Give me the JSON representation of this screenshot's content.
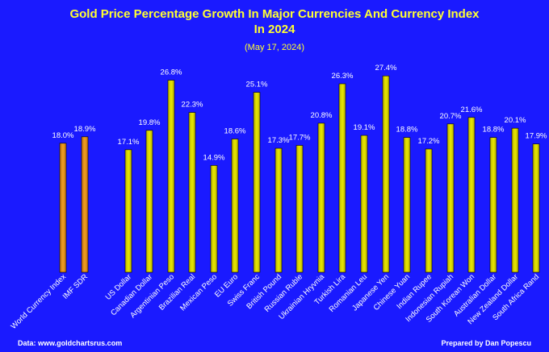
{
  "title_line1": "Gold Price Percentage Growth In Major Currencies And Currency Index",
  "title_line2": "In 2024",
  "subtitle": "(May 17, 2024)",
  "source": "Data: www.goldchartsrus.com",
  "credit": "Prepared by Dan Popescu",
  "colors": {
    "background": "#1a1aff",
    "bar_gold": "#e8e800",
    "bar_orange": "#f0a020",
    "label": "#ffffff",
    "title": "#ffff33"
  },
  "chart_data": {
    "type": "bar",
    "title": "Gold Price Percentage Growth In Major Currencies And Currency Index In 2024",
    "subtitle": "(May 17, 2024)",
    "categories": [
      "World Currency Index",
      "IMF SDR",
      "US Dollar",
      "Canadian Dollar",
      "Argentinian Peso",
      "Brazilian Real",
      "Mexican Peso",
      "EU Euro",
      "Swiss Franc",
      "British Pound",
      "Russian Ruble",
      "Ukrainian Hryvnia",
      "Turkish Lira",
      "Romanian Leu",
      "Japanese Yen",
      "Chinese Yuan",
      "Indian Rupee",
      "Indonesian Rupiah",
      "South Korean Won",
      "Australian Dollar",
      "New Zealand Dollar",
      "South Africa Rand"
    ],
    "values": [
      18.0,
      18.9,
      17.1,
      19.8,
      26.8,
      22.3,
      14.9,
      18.6,
      25.1,
      17.3,
      17.7,
      20.8,
      26.3,
      19.1,
      27.4,
      18.8,
      17.2,
      20.7,
      21.6,
      18.8,
      20.1,
      17.9
    ],
    "value_labels": [
      "18.0%",
      "18.9%",
      "17.1%",
      "19.8%",
      "26.8%",
      "22.3%",
      "14.9%",
      "18.6%",
      "25.1%",
      "17.3%",
      "17.7%",
      "20.8%",
      "26.3%",
      "19.1%",
      "27.4%",
      "18.8%",
      "17.2%",
      "20.7%",
      "21.6%",
      "18.8%",
      "20.1%",
      "17.9%"
    ],
    "bar_colors": [
      "orange",
      "orange",
      "gold",
      "gold",
      "gold",
      "gold",
      "gold",
      "gold",
      "gold",
      "gold",
      "gold",
      "gold",
      "gold",
      "gold",
      "gold",
      "gold",
      "gold",
      "gold",
      "gold",
      "gold",
      "gold",
      "gold"
    ],
    "ylim": [
      0,
      30
    ],
    "grid": false,
    "legend": "none"
  }
}
